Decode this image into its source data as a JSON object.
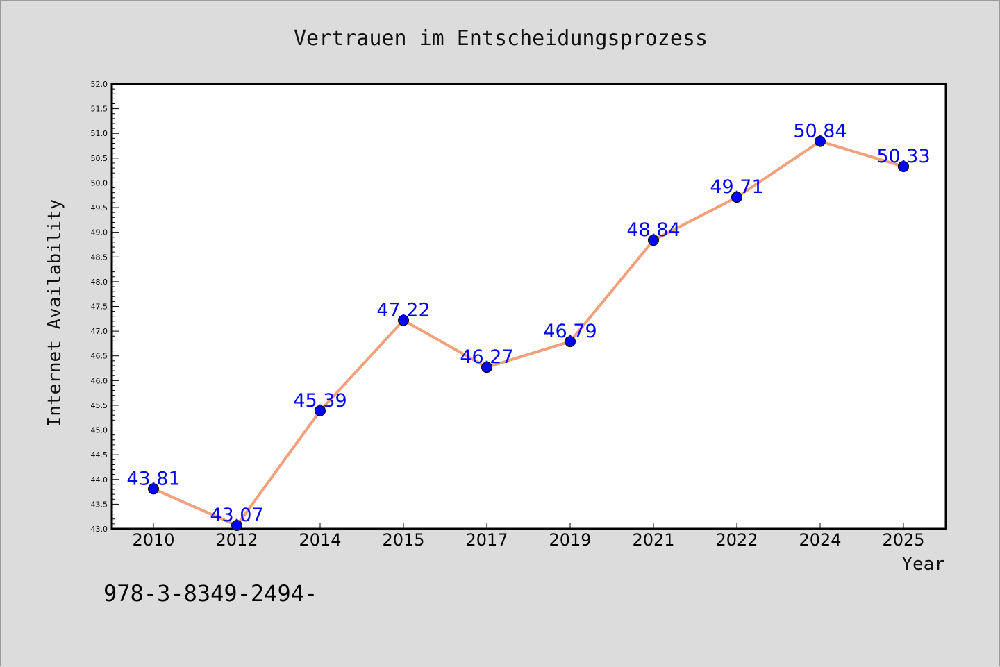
{
  "chart_data": {
    "type": "line",
    "title": "Vertrauen im Entscheidungsprozess",
    "xlabel": "Year",
    "ylabel": "Internet Availability",
    "categories": [
      "2010",
      "2012",
      "2014",
      "2015",
      "2017",
      "2019",
      "2021",
      "2022",
      "2024",
      "2025"
    ],
    "series": [
      {
        "values": [
          43.81,
          43.07,
          45.39,
          47.22,
          46.27,
          46.79,
          48.84,
          49.71,
          50.84,
          50.33
        ],
        "data_labels": [
          "43.81",
          "43.07",
          "45.39",
          "47.22",
          "46.27",
          "46.79",
          "48.84",
          "49.71",
          "50.84",
          "50.33"
        ],
        "line_color": "#f4a07a",
        "marker_color": "#0000ff"
      }
    ],
    "ylim": [
      43.0,
      52.0
    ],
    "yticks": [
      "43.0",
      "43.5",
      "44.0",
      "44.5",
      "45.0",
      "45.5",
      "46.0",
      "46.5",
      "47.0",
      "47.5",
      "48.0",
      "48.5",
      "49.0",
      "49.5",
      "50.0",
      "50.5",
      "51.0",
      "51.5",
      "52.0"
    ],
    "grid": false,
    "legend": "none",
    "background_color": "#dcdcdc",
    "plot_background_color": "#ffffff"
  },
  "footer": {
    "isbn": "978-3-8349-2494-"
  }
}
